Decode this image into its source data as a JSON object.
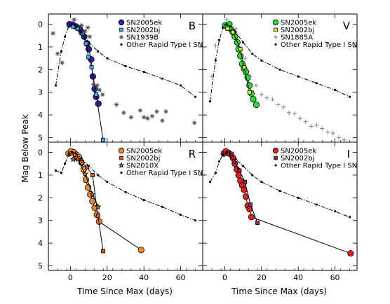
{
  "figure": {
    "xlabel": "Time Since Max (days)",
    "ylabel": "Mag Below Peak"
  },
  "chart_data": [
    {
      "type": "scatter",
      "panel": "B",
      "xlim": [
        -12,
        72
      ],
      "ylim": [
        5.2,
        -0.45
      ],
      "y_inverted": true,
      "xticks": [
        0,
        20,
        40,
        60
      ],
      "yticks": [
        0,
        1,
        2,
        3,
        4,
        5
      ],
      "legend_position": "top-right",
      "series": [
        {
          "name": "SN2005ek",
          "marker": "circle",
          "color": "#3318b0",
          "line": "solid",
          "x": [
            -0.5,
            1.2,
            3,
            5,
            6.2,
            7.5,
            9,
            10,
            11.3,
            12.2,
            13.2,
            14,
            15.2
          ],
          "y": [
            0.0,
            0.02,
            0.1,
            0.2,
            0.36,
            0.55,
            0.85,
            1.1,
            1.55,
            2.3,
            2.85,
            3.2,
            3.5
          ]
        },
        {
          "name": "SN2002bj",
          "marker": "square",
          "color": "#30b4e0",
          "line": "solid",
          "x": [
            1.5,
            4,
            6.5,
            8.5,
            9.8,
            11.5,
            14,
            17.8
          ],
          "y": [
            0.1,
            0.2,
            0.4,
            0.85,
            1.45,
            1.9,
            3.1,
            5.1
          ]
        },
        {
          "name": "SN1939B",
          "marker": "asterisk",
          "color": "#555555",
          "line": "none",
          "x": [
            -9.5,
            -7,
            -4.5,
            2,
            6,
            8,
            9.5,
            10.5,
            12.5,
            14.5,
            15.8,
            17.5,
            25,
            29,
            33,
            38,
            40,
            42,
            44.5,
            47,
            50,
            52,
            67.5
          ],
          "y": [
            0.4,
            1.3,
            1.7,
            -0.2,
            0.05,
            0.3,
            0.15,
            0.55,
            2.65,
            2.7,
            2.9,
            3.1,
            3.55,
            3.9,
            4.1,
            3.8,
            4.1,
            4.15,
            4.05,
            3.85,
            4.25,
            3.85,
            4.35
          ]
        },
        {
          "name": "Other Rapid Type I SN",
          "marker": "dot",
          "color": "#000000",
          "line": "dashdot",
          "x": [
            -8,
            -5,
            -3,
            -1,
            1,
            3,
            6,
            10,
            15,
            20,
            30,
            40,
            50,
            60,
            68
          ],
          "y": [
            2.7,
            1.2,
            0.55,
            0.12,
            0.0,
            0.1,
            0.35,
            0.8,
            1.2,
            1.5,
            1.85,
            2.1,
            2.4,
            2.7,
            3.2
          ]
        }
      ]
    },
    {
      "type": "scatter",
      "panel": "V",
      "xlim": [
        -12,
        72
      ],
      "ylim": [
        5.2,
        -0.45
      ],
      "y_inverted": true,
      "xticks": [
        0,
        20,
        40,
        60
      ],
      "yticks": [
        0,
        1,
        2,
        3,
        4,
        5
      ],
      "legend_position": "top-right",
      "series": [
        {
          "name": "SN2005ek",
          "marker": "circle",
          "color": "#22dd33",
          "line": "solid",
          "x": [
            0.2,
            1.2,
            2.5,
            3.4,
            4.4,
            5.5,
            6.8,
            7.5,
            8.5,
            9.5,
            10.5,
            11.5,
            12.5,
            13.5,
            14.5,
            15.5,
            17.2
          ],
          "y": [
            0.05,
            0.1,
            0.0,
            0.22,
            0.35,
            0.55,
            0.8,
            1.1,
            1.4,
            1.75,
            1.95,
            2.1,
            2.35,
            2.7,
            3.05,
            3.3,
            3.55
          ]
        },
        {
          "name": "SN2002bj",
          "marker": "square",
          "color": "#ddee22",
          "line": "solid",
          "x": [
            1.5,
            4.5,
            8.5,
            10.5,
            13.5
          ],
          "y": [
            0.2,
            0.35,
            1.1,
            1.9,
            3.0
          ]
        },
        {
          "name": "SN1885A",
          "marker": "plus",
          "color": "#777777",
          "line": "none",
          "x": [
            -7,
            -5,
            1,
            6,
            11,
            14,
            17,
            20,
            23,
            26,
            29,
            32,
            35,
            38,
            41,
            44,
            47,
            50,
            53,
            56,
            59,
            62,
            65
          ],
          "y": [
            2.3,
            0.95,
            -0.2,
            0.2,
            1.5,
            2.3,
            2.7,
            3.1,
            3.25,
            3.3,
            3.55,
            3.65,
            3.9,
            3.95,
            4.15,
            4.3,
            4.5,
            4.45,
            4.6,
            4.75,
            4.8,
            5.0,
            5.1
          ]
        },
        {
          "name": "Other Rapid Type I SN",
          "marker": "dot",
          "color": "#000000",
          "line": "dashdot",
          "x": [
            -8,
            -5,
            -3,
            -1,
            1,
            3,
            6,
            10,
            15,
            20,
            30,
            40,
            50,
            60,
            68
          ],
          "y": [
            3.4,
            1.6,
            0.7,
            0.15,
            0.0,
            0.1,
            0.35,
            0.8,
            1.3,
            1.6,
            2.0,
            2.3,
            2.6,
            2.9,
            3.2
          ]
        }
      ]
    },
    {
      "type": "scatter",
      "panel": "R",
      "xlim": [
        -12,
        72
      ],
      "ylim": [
        5.2,
        -0.45
      ],
      "y_inverted": true,
      "xticks": [
        0,
        20,
        40,
        60
      ],
      "yticks": [
        0,
        1,
        2,
        3,
        4,
        5
      ],
      "legend_position": "top-right",
      "series": [
        {
          "name": "SN2005ek",
          "marker": "circle",
          "color": "#ee8822",
          "line": "solid",
          "x": [
            -1,
            0.3,
            1.8,
            3.2,
            4.6,
            6,
            7.2,
            8.4,
            9.6,
            10.8,
            12,
            13.2,
            14.4,
            15.6,
            38.5
          ],
          "y": [
            0.05,
            -0.05,
            0.0,
            0.1,
            0.2,
            0.45,
            0.75,
            1.2,
            1.55,
            1.85,
            2.15,
            2.45,
            2.75,
            3.05,
            4.3
          ]
        },
        {
          "name": "SN2002bj",
          "marker": "square",
          "color": "#dd5511",
          "line": "solid",
          "x": [
            0.5,
            3,
            6,
            9,
            12,
            15,
            17.8
          ],
          "y": [
            0.05,
            0.25,
            0.45,
            0.65,
            1.0,
            2.8,
            4.35
          ]
        },
        {
          "name": "SN2010X",
          "marker": "star",
          "color": "#aa6622",
          "line": "solid",
          "x": [
            1.5,
            4,
            8,
            12,
            15
          ],
          "y": [
            0.3,
            0.3,
            0.95,
            1.85,
            2.4
          ]
        },
        {
          "name": "Other Rapid Type I SN",
          "marker": "dot",
          "color": "#000000",
          "line": "dashdot",
          "x": [
            -8,
            -5,
            -3,
            -1,
            1,
            3,
            6,
            10,
            15,
            20,
            30,
            40,
            50,
            60,
            68
          ],
          "y": [
            0.8,
            0.9,
            0.5,
            0.1,
            0.0,
            0.05,
            0.25,
            0.6,
            1.0,
            1.3,
            1.75,
            2.1,
            2.4,
            2.75,
            3.0
          ]
        }
      ]
    },
    {
      "type": "scatter",
      "panel": "I",
      "xlim": [
        -12,
        72
      ],
      "ylim": [
        5.2,
        -0.45
      ],
      "y_inverted": true,
      "xticks": [
        0,
        20,
        40,
        60
      ],
      "yticks": [
        0,
        1,
        2,
        3,
        4,
        5
      ],
      "legend_position": "top-right",
      "series": [
        {
          "name": "SN2005ek",
          "marker": "circle",
          "color": "#dd2222",
          "line": "solid",
          "x": [
            -0.5,
            0.5,
            2,
            3.5,
            4.5,
            5.5,
            6.5,
            7.5,
            8.5,
            9.5,
            10.5,
            11.5,
            12.5,
            13.5,
            14.5,
            68.5
          ],
          "y": [
            0.05,
            -0.05,
            0.02,
            0.1,
            0.25,
            0.5,
            0.75,
            1.0,
            1.25,
            1.45,
            1.65,
            1.95,
            2.35,
            2.5,
            2.85,
            4.45
          ]
        },
        {
          "name": "SN2002bj",
          "marker": "square",
          "color": "#992266",
          "line": "solid",
          "x": [
            2,
            5,
            8,
            11,
            14,
            17.8
          ],
          "y": [
            0.05,
            0.4,
            0.8,
            1.3,
            2.3,
            3.1
          ]
        },
        {
          "name": "Other Rapid Type I SN",
          "marker": "dot",
          "color": "#000000",
          "line": "dashdot",
          "x": [
            -8,
            -5,
            -3,
            -1,
            1,
            3,
            6,
            10,
            15,
            20,
            30,
            40,
            50,
            60,
            68
          ],
          "y": [
            1.3,
            0.9,
            0.4,
            0.1,
            0.0,
            0.05,
            0.3,
            0.6,
            1.0,
            1.3,
            1.7,
            2.0,
            2.3,
            2.6,
            2.85
          ]
        }
      ]
    }
  ]
}
